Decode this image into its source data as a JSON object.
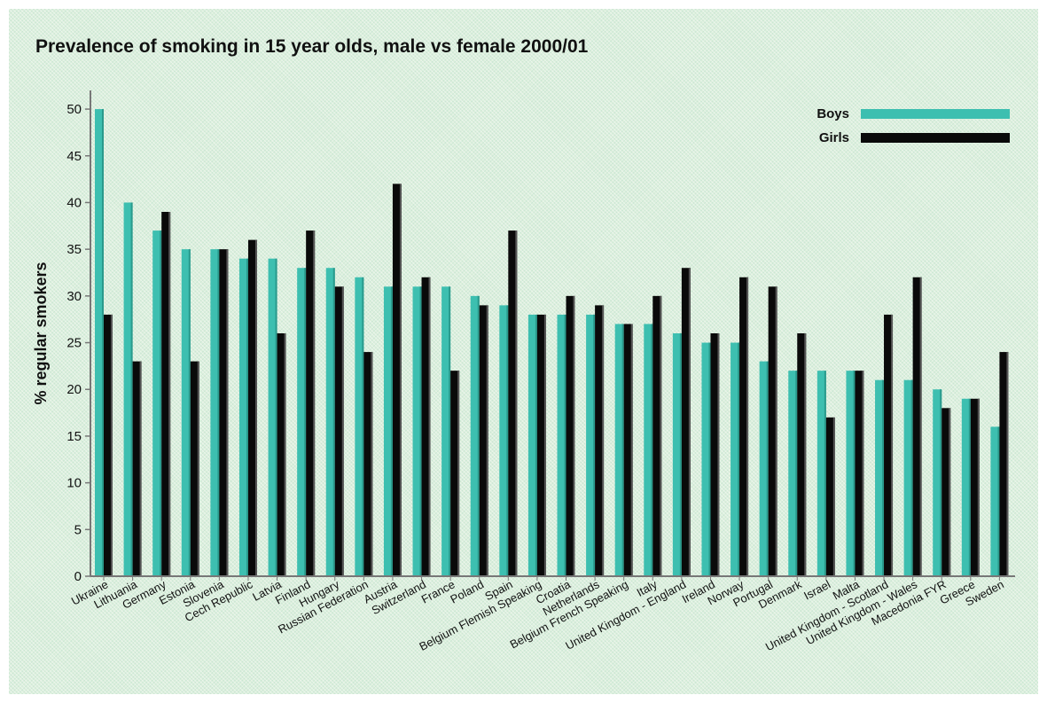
{
  "chart_data": {
    "type": "bar",
    "title": "Prevalence of smoking in 15 year olds, male vs female 2000/01",
    "xlabel": "",
    "ylabel": "% regular smokers",
    "ylim": [
      0,
      52
    ],
    "yticks": [
      0,
      5,
      10,
      15,
      20,
      25,
      30,
      35,
      40,
      45,
      50
    ],
    "grid": false,
    "legend_position": "top-right",
    "categories": [
      "Ukraine",
      "Lithuania",
      "Germany",
      "Estonia",
      "Slovenia",
      "Cech Republic",
      "Latvia",
      "Finland",
      "Hungary",
      "Russian Federation",
      "Austria",
      "Switzerland",
      "France",
      "Poland",
      "Spain",
      "Belgium Flemish Speaking",
      "Croatia",
      "Netherlands",
      "Belgium French Speaking",
      "Italy",
      "United Kingdom - England",
      "Ireland",
      "Norway",
      "Portugal",
      "Denmark",
      "Israel",
      "Malta",
      "United Kingdom - Scotland",
      "United Kingdom - Wales",
      "Macedonia FYR",
      "Greece",
      "Sweden"
    ],
    "series": [
      {
        "name": "Boys",
        "color": "#3dbfb0",
        "values": [
          50,
          40,
          37,
          35,
          35,
          34,
          34,
          33,
          33,
          32,
          31,
          31,
          31,
          30,
          29,
          28,
          28,
          28,
          27,
          27,
          26,
          25,
          25,
          23,
          22,
          22,
          22,
          21,
          21,
          20,
          19,
          16
        ]
      },
      {
        "name": "Girls",
        "color": "#0a0a0a",
        "values": [
          28,
          23,
          39,
          23,
          35,
          36,
          26,
          37,
          31,
          24,
          42,
          32,
          22,
          29,
          37,
          28,
          30,
          29,
          27,
          30,
          33,
          26,
          32,
          31,
          26,
          17,
          22,
          28,
          32,
          18,
          19,
          24
        ]
      }
    ]
  }
}
